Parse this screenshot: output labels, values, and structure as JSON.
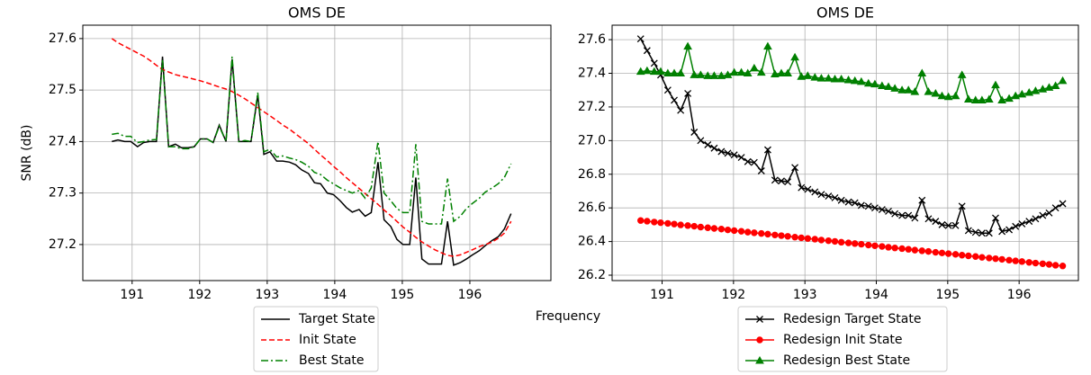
{
  "shared_xlabel": "Frequency",
  "chart_data": [
    {
      "type": "line",
      "title": "OMS DE",
      "ylabel": "SNR (dB)",
      "grid": true,
      "legend": "below",
      "xlim": [
        190.27,
        197.2
      ],
      "ylim": [
        27.13,
        27.626
      ],
      "xticks": [
        191,
        192,
        193,
        194,
        195,
        196
      ],
      "yticks": [
        27.2,
        27.3,
        27.4,
        27.5,
        27.6
      ],
      "x": [
        190.7,
        190.79,
        190.89,
        190.98,
        191.08,
        191.17,
        191.26,
        191.36,
        191.45,
        191.54,
        191.64,
        191.73,
        191.83,
        191.92,
        192.01,
        192.11,
        192.2,
        192.29,
        192.39,
        192.48,
        192.58,
        192.67,
        192.76,
        192.86,
        192.95,
        193.04,
        193.14,
        193.23,
        193.33,
        193.42,
        193.51,
        193.61,
        193.7,
        193.79,
        193.89,
        193.98,
        194.08,
        194.17,
        194.26,
        194.36,
        194.45,
        194.54,
        194.64,
        194.73,
        194.83,
        194.92,
        195.01,
        195.11,
        195.2,
        195.29,
        195.39,
        195.48,
        195.58,
        195.67,
        195.76,
        195.86,
        195.95,
        196.04,
        196.14,
        196.23,
        196.33,
        196.42,
        196.51,
        196.61
      ],
      "series": [
        {
          "name": "Target State",
          "color": "#000000",
          "dash": "solid",
          "marker": "none",
          "values": [
            27.4,
            27.403,
            27.4,
            27.4,
            27.39,
            27.398,
            27.4,
            27.4,
            27.565,
            27.39,
            27.395,
            27.388,
            27.388,
            27.39,
            27.405,
            27.405,
            27.398,
            27.432,
            27.4,
            27.56,
            27.4,
            27.4,
            27.4,
            27.49,
            27.375,
            27.38,
            27.362,
            27.362,
            27.36,
            27.355,
            27.345,
            27.338,
            27.32,
            27.318,
            27.3,
            27.297,
            27.285,
            27.272,
            27.263,
            27.268,
            27.255,
            27.262,
            27.36,
            27.248,
            27.235,
            27.21,
            27.2,
            27.2,
            27.33,
            27.172,
            27.162,
            27.162,
            27.162,
            27.245,
            27.16,
            27.165,
            27.172,
            27.18,
            27.188,
            27.198,
            27.208,
            27.215,
            27.23,
            27.26
          ]
        },
        {
          "name": "Init State",
          "color": "#ff0000",
          "dash": "dashed",
          "marker": "none",
          "values": [
            27.6,
            27.592,
            27.585,
            27.579,
            27.572,
            27.566,
            27.558,
            27.548,
            27.54,
            27.535,
            27.53,
            27.527,
            27.524,
            27.521,
            27.518,
            27.514,
            27.51,
            27.506,
            27.502,
            27.497,
            27.49,
            27.483,
            27.475,
            27.466,
            27.458,
            27.45,
            27.441,
            27.432,
            27.424,
            27.415,
            27.406,
            27.396,
            27.385,
            27.374,
            27.363,
            27.352,
            27.341,
            27.33,
            27.32,
            27.309,
            27.299,
            27.289,
            27.278,
            27.267,
            27.256,
            27.245,
            27.234,
            27.224,
            27.214,
            27.205,
            27.197,
            27.19,
            27.184,
            27.179,
            27.177,
            27.18,
            27.185,
            27.19,
            27.196,
            27.2,
            27.205,
            27.212,
            27.222,
            27.245
          ]
        },
        {
          "name": "Best State",
          "color": "#008000",
          "dash": "dashdot",
          "marker": "none",
          "values": [
            27.414,
            27.416,
            27.41,
            27.41,
            27.398,
            27.4,
            27.403,
            27.404,
            27.56,
            27.39,
            27.39,
            27.386,
            27.386,
            27.39,
            27.405,
            27.405,
            27.398,
            27.43,
            27.4,
            27.565,
            27.4,
            27.402,
            27.4,
            27.495,
            27.38,
            27.385,
            27.37,
            27.372,
            27.368,
            27.365,
            27.36,
            27.352,
            27.34,
            27.336,
            27.325,
            27.318,
            27.31,
            27.305,
            27.3,
            27.305,
            27.29,
            27.31,
            27.4,
            27.3,
            27.285,
            27.27,
            27.262,
            27.262,
            27.395,
            27.245,
            27.24,
            27.24,
            27.24,
            27.328,
            27.245,
            27.255,
            27.27,
            27.28,
            27.29,
            27.302,
            27.31,
            27.318,
            27.33,
            27.357
          ]
        }
      ]
    },
    {
      "type": "line",
      "title": "OMS DE",
      "grid": true,
      "legend": "below",
      "xlim": [
        190.3,
        196.83
      ],
      "ylim": [
        26.168,
        27.686
      ],
      "xticks": [
        191,
        192,
        193,
        194,
        195,
        196
      ],
      "yticks": [
        26.2,
        26.4,
        26.6,
        26.8,
        {
          "value": 27,
          "label": "27.0"
        },
        27.2,
        27.4,
        27.6
      ],
      "x": [
        190.7,
        190.79,
        190.89,
        190.98,
        191.08,
        191.17,
        191.26,
        191.36,
        191.45,
        191.54,
        191.64,
        191.73,
        191.83,
        191.92,
        192.01,
        192.11,
        192.2,
        192.29,
        192.39,
        192.48,
        192.58,
        192.67,
        192.76,
        192.86,
        192.95,
        193.04,
        193.14,
        193.23,
        193.33,
        193.42,
        193.51,
        193.61,
        193.7,
        193.79,
        193.89,
        193.98,
        194.08,
        194.17,
        194.26,
        194.36,
        194.45,
        194.54,
        194.64,
        194.73,
        194.83,
        194.92,
        195.01,
        195.11,
        195.2,
        195.29,
        195.39,
        195.48,
        195.58,
        195.67,
        195.76,
        195.86,
        195.95,
        196.04,
        196.14,
        196.23,
        196.33,
        196.42,
        196.51,
        196.61
      ],
      "series": [
        {
          "name": "Redesign Target State",
          "color": "#000000",
          "dash": "solid",
          "marker": "x",
          "values": [
            27.605,
            27.535,
            27.46,
            27.39,
            27.3,
            27.24,
            27.18,
            27.28,
            27.05,
            27.0,
            26.975,
            26.955,
            26.935,
            26.925,
            26.915,
            26.9,
            26.875,
            26.87,
            26.82,
            26.945,
            26.765,
            26.76,
            26.755,
            26.84,
            26.72,
            26.71,
            26.695,
            26.68,
            26.67,
            26.66,
            26.645,
            26.635,
            26.63,
            26.615,
            26.61,
            26.6,
            26.59,
            26.58,
            26.565,
            26.555,
            26.555,
            26.54,
            26.645,
            26.535,
            26.52,
            26.5,
            26.495,
            26.495,
            26.61,
            26.465,
            26.455,
            26.45,
            26.45,
            26.54,
            26.46,
            26.47,
            26.49,
            26.505,
            26.52,
            26.535,
            26.555,
            26.57,
            26.6,
            26.625
          ]
        },
        {
          "name": "Redesign Init State",
          "color": "#ff0000",
          "dash": "solid",
          "marker": "o",
          "values": [
            26.525,
            26.521,
            26.516,
            26.512,
            26.508,
            26.504,
            26.499,
            26.495,
            26.491,
            26.486,
            26.482,
            26.478,
            26.474,
            26.469,
            26.465,
            26.461,
            26.456,
            26.452,
            26.448,
            26.444,
            26.439,
            26.435,
            26.431,
            26.426,
            26.422,
            26.418,
            26.414,
            26.409,
            26.405,
            26.401,
            26.396,
            26.392,
            26.388,
            26.384,
            26.379,
            26.375,
            26.371,
            26.366,
            26.362,
            26.358,
            26.354,
            26.349,
            26.345,
            26.341,
            26.336,
            26.332,
            26.328,
            26.324,
            26.319,
            26.315,
            26.311,
            26.306,
            26.302,
            26.298,
            26.294,
            26.289,
            26.285,
            26.281,
            26.276,
            26.272,
            26.268,
            26.264,
            26.259,
            26.255
          ]
        },
        {
          "name": "Redesign Best State",
          "color": "#008000",
          "dash": "solid",
          "marker": "^",
          "values": [
            27.41,
            27.415,
            27.41,
            27.41,
            27.4,
            27.4,
            27.4,
            27.56,
            27.39,
            27.39,
            27.385,
            27.385,
            27.385,
            27.39,
            27.405,
            27.405,
            27.4,
            27.43,
            27.405,
            27.56,
            27.395,
            27.4,
            27.4,
            27.495,
            27.38,
            27.385,
            27.375,
            27.37,
            27.37,
            27.365,
            27.365,
            27.36,
            27.355,
            27.35,
            27.34,
            27.335,
            27.325,
            27.32,
            27.31,
            27.3,
            27.3,
            27.29,
            27.4,
            27.29,
            27.28,
            27.265,
            27.26,
            27.265,
            27.39,
            27.245,
            27.24,
            27.24,
            27.245,
            27.33,
            27.24,
            27.25,
            27.265,
            27.275,
            27.285,
            27.295,
            27.305,
            27.315,
            27.325,
            27.355
          ]
        }
      ]
    }
  ]
}
